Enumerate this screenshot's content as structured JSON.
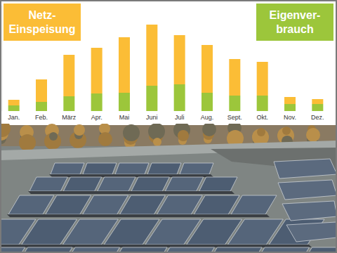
{
  "chart_data": {
    "type": "bar",
    "stacked": true,
    "legend": "top",
    "tick_labels": "x",
    "categories": [
      "Jan.",
      "Feb.",
      "März",
      "Apr.",
      "Mai",
      "Juni",
      "Juli",
      "Aug.",
      "Sept.",
      "Okt.",
      "Nov.",
      "Dez."
    ],
    "series": [
      {
        "name": "Eigenver-\nbrauch",
        "color": "#9cc63b",
        "values": [
          8,
          13,
          21,
          25,
          26,
          36,
          38,
          26,
          22,
          22,
          10,
          10
        ]
      },
      {
        "name": "Netz-\nEinspeisung",
        "color": "#fbbd36",
        "values": [
          8,
          32,
          59,
          65,
          79,
          87,
          70,
          68,
          52,
          48,
          10,
          7
        ]
      }
    ],
    "ylim": [
      0,
      150
    ]
  }
}
